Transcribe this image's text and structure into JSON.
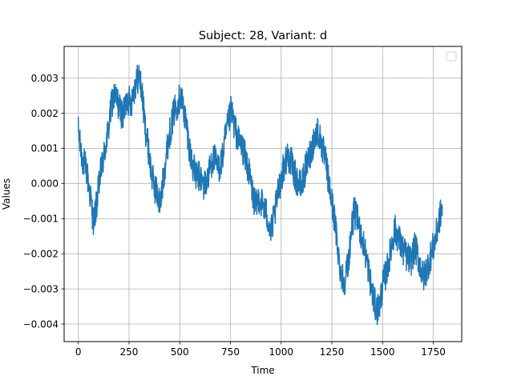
{
  "chart_data": {
    "type": "line",
    "title": "Subject: 28, Variant: d",
    "xlabel": "Time",
    "ylabel": "Values",
    "xlim": [
      -70,
      1890
    ],
    "ylim": [
      -0.0045,
      0.0039
    ],
    "xticks": [
      0,
      250,
      500,
      750,
      1000,
      1250,
      1500,
      1750
    ],
    "xtick_labels": [
      "0",
      "250",
      "500",
      "750",
      "1000",
      "1250",
      "1500",
      "1750"
    ],
    "yticks": [
      -0.004,
      -0.003,
      -0.002,
      -0.001,
      0.0,
      0.001,
      0.002,
      0.003
    ],
    "ytick_labels": [
      "−0.004",
      "−0.003",
      "−0.002",
      "−0.001",
      "0.000",
      "0.001",
      "0.002",
      "0.003"
    ],
    "grid": true,
    "legend": {
      "placement": "top-right",
      "entries": []
    },
    "series": [
      {
        "color": "#1f77b4",
        "noise_band": 0.00045,
        "x": [
          0,
          10,
          20,
          40,
          60,
          75,
          90,
          110,
          130,
          150,
          165,
          180,
          200,
          220,
          240,
          260,
          280,
          300,
          315,
          330,
          345,
          360,
          375,
          390,
          405,
          420,
          440,
          460,
          475,
          490,
          505,
          520,
          535,
          550,
          565,
          580,
          600,
          620,
          640,
          655,
          670,
          690,
          710,
          725,
          740,
          755,
          770,
          790,
          810,
          830,
          845,
          860,
          875,
          890,
          910,
          930,
          950,
          970,
          990,
          1010,
          1030,
          1050,
          1075,
          1100,
          1120,
          1140,
          1160,
          1180,
          1200,
          1220,
          1240,
          1260,
          1275,
          1290,
          1310,
          1330,
          1345,
          1360,
          1380,
          1400,
          1420,
          1440,
          1455,
          1470,
          1485,
          1500,
          1520,
          1540,
          1560,
          1580,
          1600,
          1620,
          1640,
          1660,
          1680,
          1700,
          1720,
          1740,
          1760,
          1780,
          1795
        ],
        "y": [
          0.0015,
          0.001,
          0.0007,
          0.0004,
          -0.0004,
          -0.0011,
          -0.0006,
          0.0003,
          0.0009,
          0.0016,
          0.0023,
          0.0025,
          0.0022,
          0.0019,
          0.0024,
          0.0023,
          0.0028,
          0.0031,
          0.0025,
          0.0016,
          0.001,
          0.0003,
          -0.0001,
          -0.0003,
          -0.0006,
          0.0002,
          0.0011,
          0.0017,
          0.0021,
          0.0023,
          0.0025,
          0.0021,
          0.0016,
          0.0009,
          0.0005,
          0.0002,
          0.0002,
          -0.0001,
          0.0002,
          0.0006,
          0.0007,
          0.0004,
          0.0007,
          0.0013,
          0.0017,
          0.0021,
          0.0016,
          0.0012,
          0.001,
          0.0006,
          0.0002,
          -0.0003,
          -0.0007,
          -0.0004,
          -0.0006,
          -0.0009,
          -0.0014,
          -0.0008,
          -0.0001,
          0.0004,
          0.0008,
          0.0006,
          0.0001,
          -0.0001,
          0.0004,
          0.0008,
          0.0012,
          0.0015,
          0.0011,
          0.0006,
          -0.0002,
          -0.0009,
          -0.0016,
          -0.0024,
          -0.0028,
          -0.0023,
          -0.0014,
          -0.0008,
          -0.0011,
          -0.0016,
          -0.0021,
          -0.0028,
          -0.0033,
          -0.0036,
          -0.0035,
          -0.0029,
          -0.0025,
          -0.0019,
          -0.0013,
          -0.0016,
          -0.0019,
          -0.0021,
          -0.0022,
          -0.0018,
          -0.0022,
          -0.0027,
          -0.0024,
          -0.002,
          -0.0016,
          -0.001,
          -0.0007
        ]
      }
    ]
  }
}
